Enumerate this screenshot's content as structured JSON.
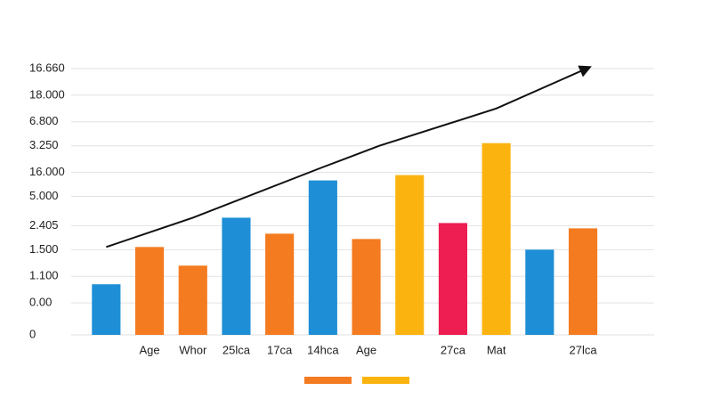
{
  "chart_data": {
    "type": "bar",
    "categories": [
      null,
      "Age",
      "Whor",
      "25lca",
      "17ca",
      "14hca",
      "Age",
      null,
      "27ca",
      "Mat",
      null,
      "27lca"
    ],
    "values": [
      1.9,
      3.3,
      2.6,
      4.4,
      3.8,
      5.8,
      3.6,
      6.0,
      4.2,
      7.2,
      3.2,
      4.0
    ],
    "colors": [
      "#1e8fd6",
      "#f47b20",
      "#f47b20",
      "#1e8fd6",
      "#f47b20",
      "#1e8fd6",
      "#f47b20",
      "#fbb40f",
      "#ee1d52",
      "#fbb40f",
      "#1e8fd6",
      "#f47b20"
    ],
    "ylim": [
      0,
      10
    ],
    "yticks": [
      0,
      {
        "value": 1.2,
        "label": "0.00"
      },
      {
        "value": 2.2,
        "label": "1.100"
      },
      {
        "value": 3.2,
        "label": "1.500"
      },
      {
        "value": 4.1,
        "label": "2.405"
      },
      {
        "value": 5.2,
        "label": "5.000"
      },
      {
        "value": 6.1,
        "label": "16.000"
      },
      {
        "value": 7.1,
        "label": "3.250"
      },
      {
        "value": 8,
        "label": "6.800"
      },
      {
        "value": 9,
        "label": "18.000"
      },
      {
        "value": 10,
        "label": "16.660"
      }
    ],
    "grid": true,
    "trend": {
      "x": [
        0,
        2,
        5,
        6.3,
        9,
        11.15
      ],
      "values": [
        3.3,
        4.4,
        6.3,
        7.1,
        8.5,
        10.05
      ],
      "color": "#111111"
    },
    "legend_colors": [
      "#f47b20",
      "#fbb40f"
    ]
  }
}
